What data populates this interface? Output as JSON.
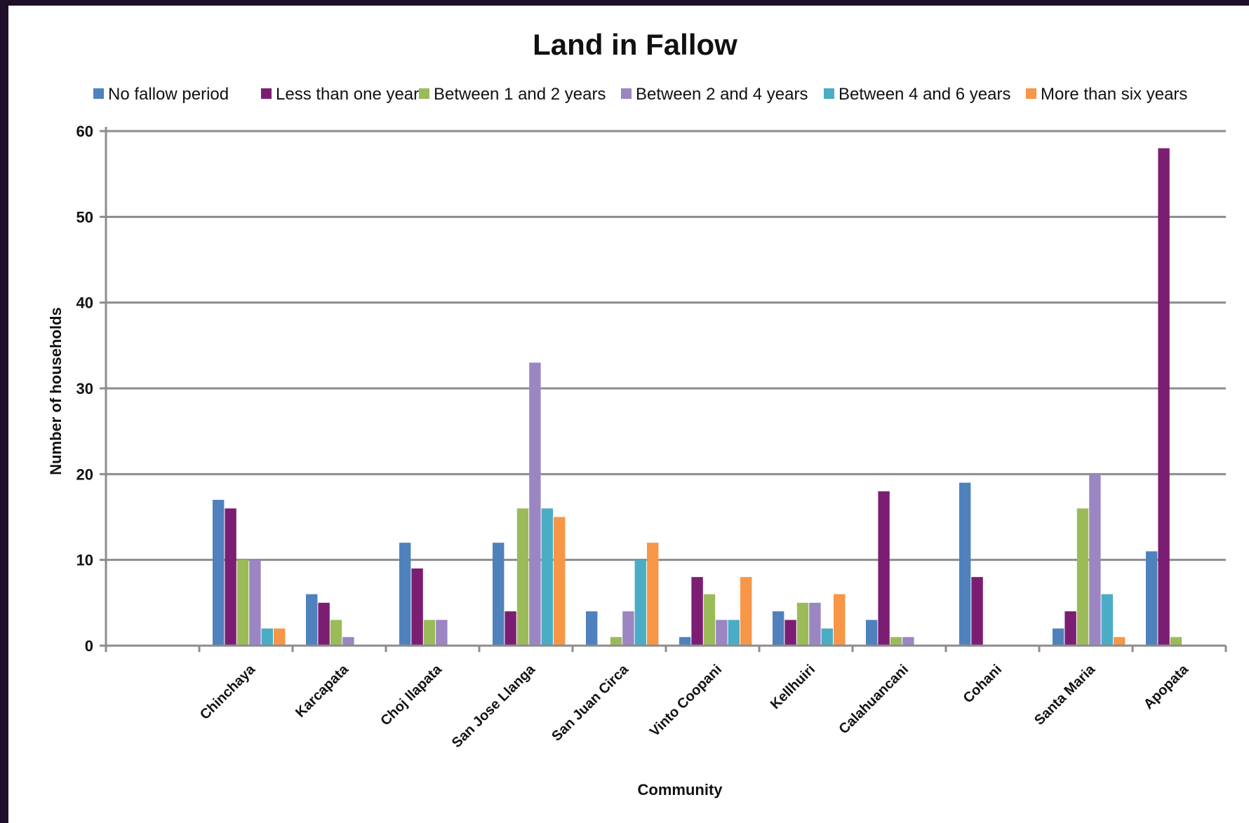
{
  "chart_data": {
    "type": "bar",
    "title": "Land in Fallow",
    "xlabel": "Community",
    "ylabel": "Number of households",
    "ylim": [
      0,
      60
    ],
    "yticks": [
      0,
      10,
      20,
      30,
      40,
      50,
      60
    ],
    "grid": true,
    "legend_position": "top",
    "categories": [
      "",
      "Chinchaya",
      "Karcapata",
      "Choj llapata",
      "San Jose Llanga",
      "San Juan Circa",
      "Vinto Coopani",
      "Kellhuiri",
      "Calahuancani",
      "Cohani",
      "Santa Maria",
      "Apopata"
    ],
    "series": [
      {
        "name": "No fallow period",
        "color": "#4f81bd",
        "values": [
          null,
          17,
          6,
          12,
          12,
          4,
          1,
          4,
          3,
          19,
          2,
          11
        ]
      },
      {
        "name": "Less than one year",
        "color": "#7b1e73",
        "values": [
          null,
          16,
          5,
          9,
          4,
          0,
          8,
          3,
          18,
          8,
          4,
          58
        ]
      },
      {
        "name": "Between 1 and 2 years",
        "color": "#9bbb59",
        "values": [
          null,
          10,
          3,
          3,
          16,
          1,
          6,
          5,
          1,
          0,
          16,
          1
        ]
      },
      {
        "name": "Between 2 and 4 years",
        "color": "#9b85c2",
        "values": [
          null,
          10,
          1,
          3,
          33,
          4,
          3,
          5,
          1,
          0,
          20,
          0
        ]
      },
      {
        "name": "Between 4 and 6 years",
        "color": "#4bacc6",
        "values": [
          null,
          2,
          0,
          0,
          16,
          10,
          3,
          2,
          0,
          0,
          6,
          0
        ]
      },
      {
        "name": "More than six years",
        "color": "#f79646",
        "values": [
          null,
          2,
          0,
          0,
          15,
          12,
          8,
          6,
          0,
          0,
          1,
          0
        ]
      }
    ]
  }
}
